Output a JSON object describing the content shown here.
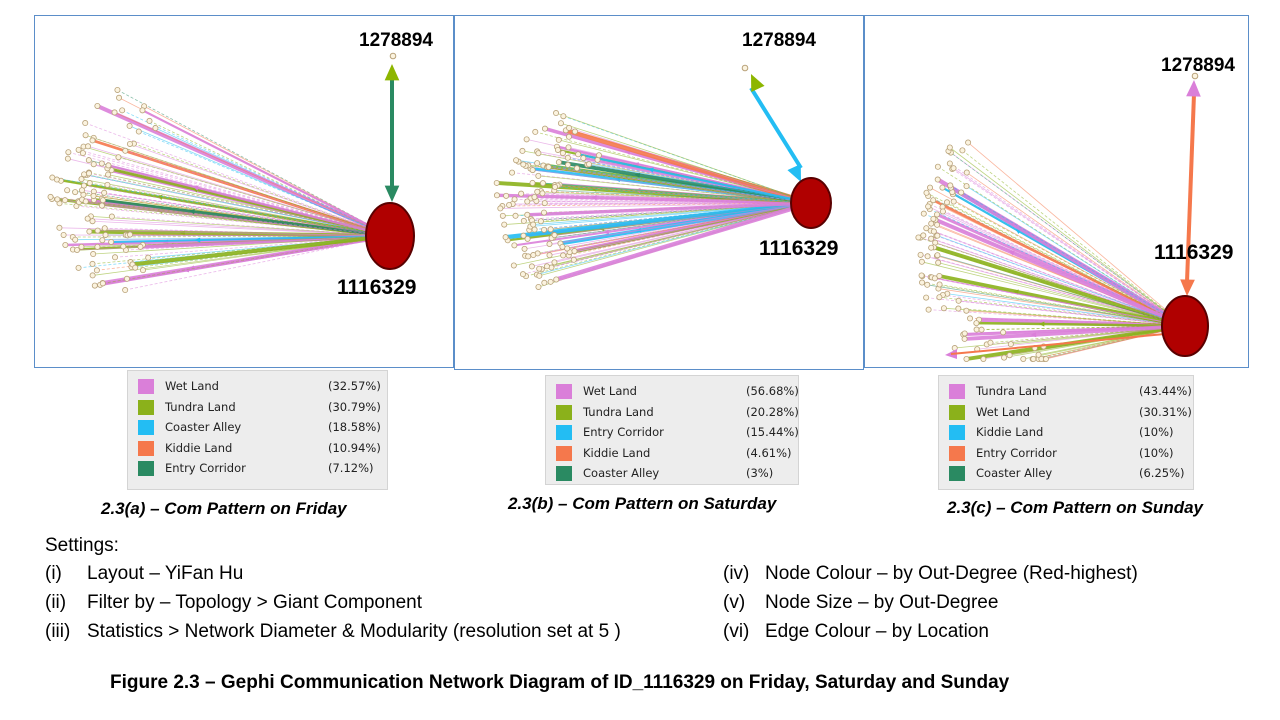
{
  "panels": [
    {
      "id": "friday",
      "node_top_label": "1278894",
      "node_hub_label": "1116329",
      "link_color": "#2a8a62",
      "top_arrow_color": "#8db600",
      "legend": [
        {
          "name": "Wet Land",
          "pct": "(32.57%)",
          "color": "#da7fd9"
        },
        {
          "name": "Tundra Land",
          "pct": "(30.79%)",
          "color": "#8bb11b"
        },
        {
          "name": "Coaster Alley",
          "pct": "(18.58%)",
          "color": "#23bdf3"
        },
        {
          "name": "Kiddie Land",
          "pct": "(10.94%)",
          "color": "#f5784c"
        },
        {
          "name": "Entry Corridor",
          "pct": "(7.12%)",
          "color": "#2a8a62"
        }
      ],
      "caption": "2.3(a) – Com Pattern on Friday"
    },
    {
      "id": "saturday",
      "node_top_label": "1278894",
      "node_hub_label": "1116329",
      "link_color": "#23bdf3",
      "top_arrow_color": "#8db600",
      "legend": [
        {
          "name": "Wet Land",
          "pct": "(56.68%)",
          "color": "#da7fd9"
        },
        {
          "name": "Tundra Land",
          "pct": "(20.28%)",
          "color": "#8bb11b"
        },
        {
          "name": "Entry Corridor",
          "pct": "(15.44%)",
          "color": "#23bdf3"
        },
        {
          "name": "Kiddie Land",
          "pct": "(4.61%)",
          "color": "#f5784c"
        },
        {
          "name": "Coaster Alley",
          "pct": "(3%)",
          "color": "#2a8a62"
        }
      ],
      "caption": "2.3(b) – Com Pattern on Saturday"
    },
    {
      "id": "sunday",
      "node_top_label": "1278894",
      "node_hub_label": "1116329",
      "link_color": "#f5784c",
      "top_arrow_color": "#da7fd9",
      "legend": [
        {
          "name": "Tundra Land",
          "pct": "(43.44%)",
          "color": "#da7fd9"
        },
        {
          "name": "Wet Land",
          "pct": "(30.31%)",
          "color": "#8bb11b"
        },
        {
          "name": "Kiddie Land",
          "pct": "(10%)",
          "color": "#23bdf3"
        },
        {
          "name": "Entry Corridor",
          "pct": "(10%)",
          "color": "#f5784c"
        },
        {
          "name": "Coaster Alley",
          "pct": "(6.25%)",
          "color": "#2a8a62"
        }
      ],
      "caption": "2.3(c) – Com Pattern on Sunday"
    }
  ],
  "settings": {
    "heading": "Settings:",
    "left": [
      {
        "num": "(i)",
        "text": "Layout – YiFan Hu"
      },
      {
        "num": "(ii)",
        "text": "Filter by – Topology > Giant Component"
      },
      {
        "num": "(iii)",
        "text": "Statistics > Network Diameter & Modularity (resolution set at 5 )"
      }
    ],
    "right": [
      {
        "num": "(iv)",
        "text": "Node Colour – by Out-Degree (Red-highest)"
      },
      {
        "num": "(v)",
        "text": "Node Size – by Out-Degree"
      },
      {
        "num": "(vi)",
        "text": "Edge Colour – by Location"
      }
    ]
  },
  "figure_title": "Figure 2.3 – Gephi Communication Network Diagram of ID_1116329 on Friday, Saturday and Sunday",
  "colors": {
    "hub_node": "#b00000",
    "hub_stroke": "#5a0000",
    "leaf_node_fill": "#fbf3df",
    "leaf_node_stroke": "#b8a27a",
    "panel_border": "#5b8ec9"
  }
}
